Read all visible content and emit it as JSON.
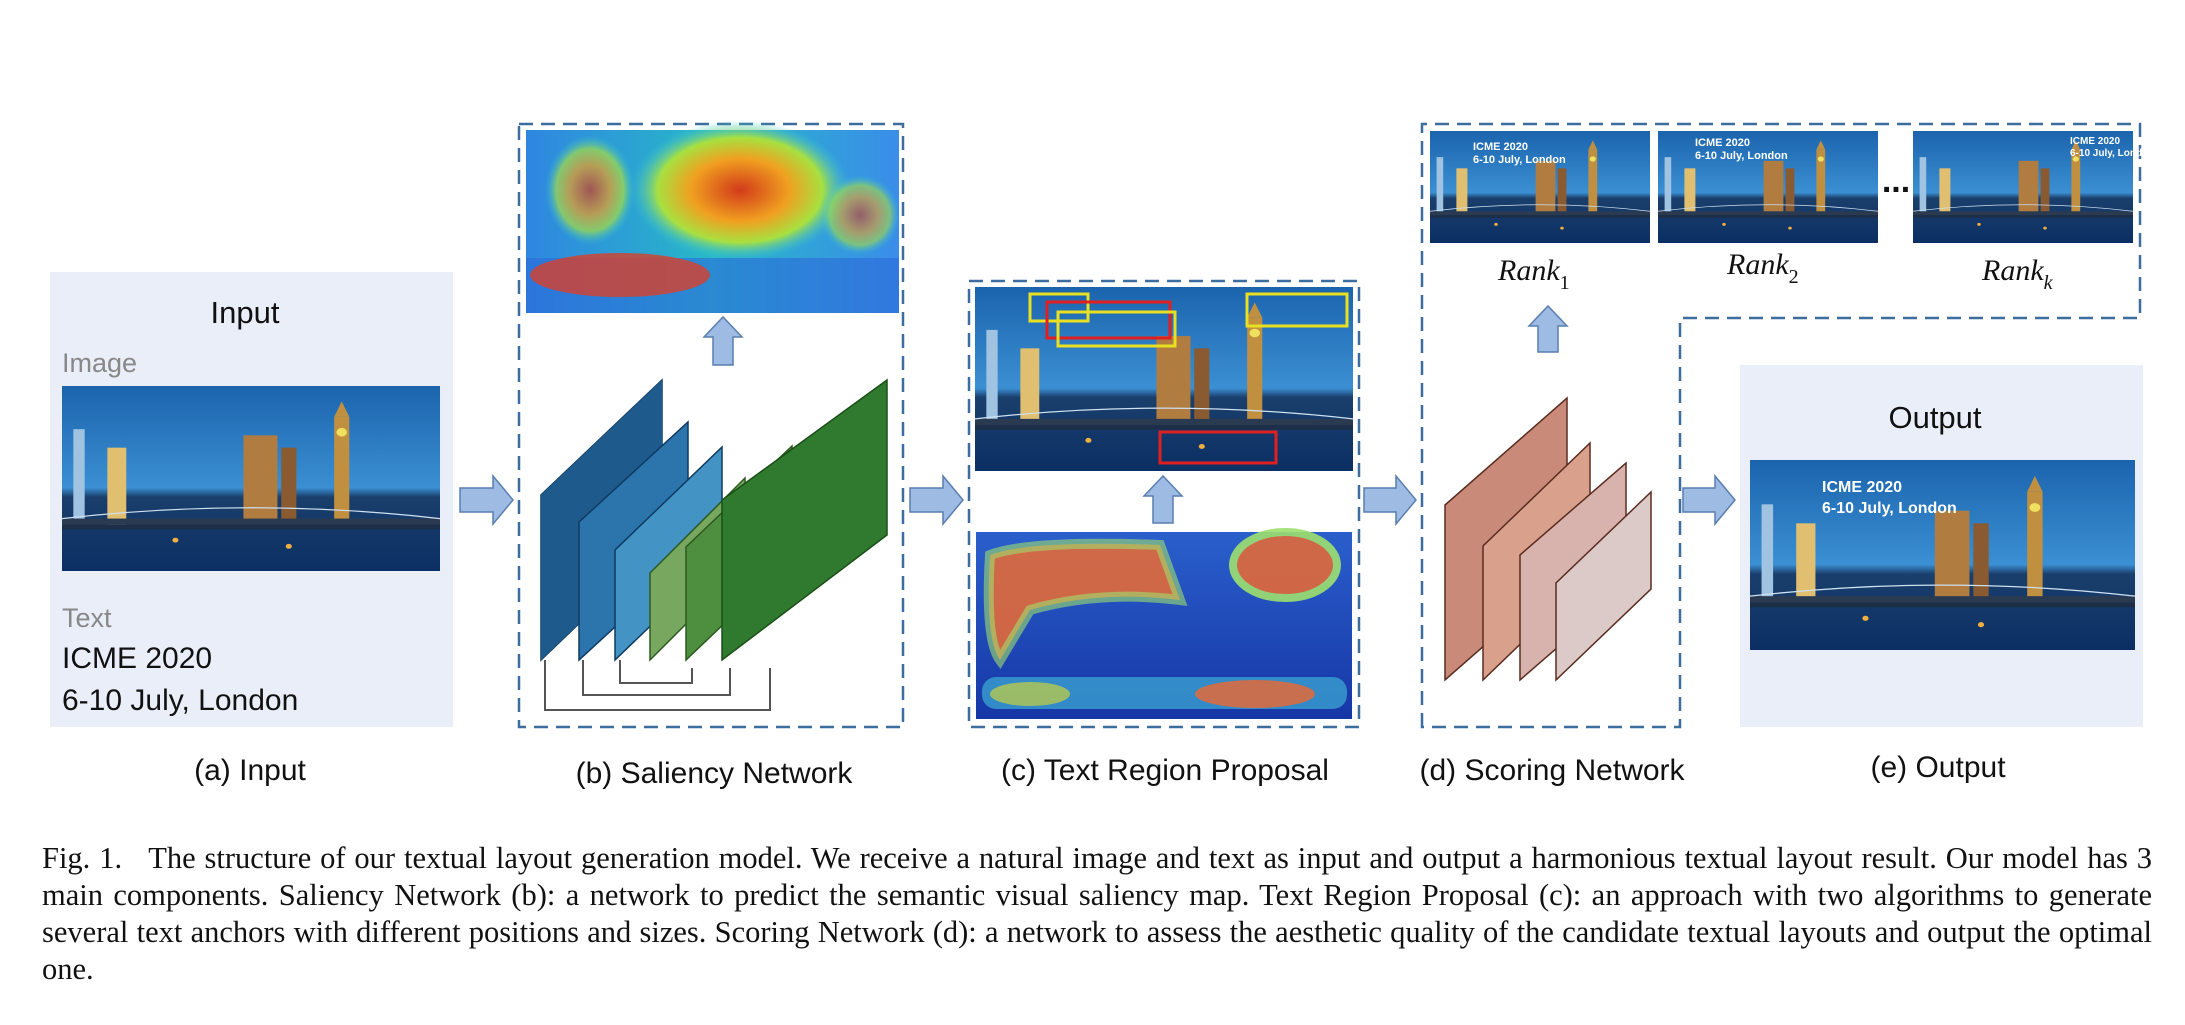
{
  "panels": {
    "input": {
      "title": "Input",
      "image_label": "Image",
      "text_label": "Text",
      "text_line1": "ICME 2020",
      "text_line2": "6-10 July, London",
      "caption": "(a) Input"
    },
    "saliency": {
      "caption": "(b) Saliency Network"
    },
    "proposal": {
      "caption": "(c) Text Region Proposal"
    },
    "scoring": {
      "caption": "(d) Scoring Network",
      "rank_base": "Rank",
      "rank_subs": [
        "1",
        "2",
        "k"
      ],
      "ellipsis": "...",
      "thumb_line1": "ICME 2020",
      "thumb_line2": "6-10 July, London"
    },
    "output": {
      "title": "Output",
      "overlay_line1": "ICME 2020",
      "overlay_line2": "6-10 July, London",
      "caption": "(e) Output"
    }
  },
  "caption": {
    "label": "Fig. 1.",
    "text": "The structure of our textual layout generation model. We receive a natural image and text as input and output a harmonious textual layout result. Our model has 3 main components. Saliency Network (b): a network to predict the semantic visual saliency map. Text Region Proposal (c): an approach with two algorithms to generate several text anchors with different positions and sizes. Scoring Network (d): a network to assess the aesthetic quality of the candidate textual layouts and output the optimal one."
  },
  "colors": {
    "panel_bg": "#e9eef8",
    "dash": "#3d6c9e",
    "arrow_fill": "#9dbbe3",
    "sky_top": "#1e6fb8",
    "water": "#0b2f63",
    "blue_layers": [
      "#1f5a8c",
      "#2c74ac",
      "#4394c4"
    ],
    "green_layers": [
      "#78a860",
      "#4d8f3e",
      "#2f7a2e"
    ],
    "score_layers": [
      "#c98a7a",
      "#d9a08c",
      "#d8b3ad",
      "#dccac8"
    ],
    "box_yellow": "#e8e020",
    "box_red": "#e02020"
  }
}
